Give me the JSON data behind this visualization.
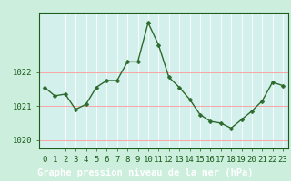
{
  "x": [
    0,
    1,
    2,
    3,
    4,
    5,
    6,
    7,
    8,
    9,
    10,
    11,
    12,
    13,
    14,
    15,
    16,
    17,
    18,
    19,
    20,
    21,
    22,
    23
  ],
  "y": [
    1021.55,
    1021.3,
    1021.35,
    1020.9,
    1021.05,
    1021.55,
    1021.75,
    1021.75,
    1022.3,
    1022.3,
    1023.45,
    1022.8,
    1021.85,
    1021.55,
    1021.2,
    1020.75,
    1020.55,
    1020.5,
    1020.35,
    1020.6,
    1020.85,
    1021.15,
    1021.7,
    1021.6
  ],
  "ylim": [
    1019.75,
    1023.75
  ],
  "yticks": [
    1020,
    1021,
    1022
  ],
  "xticks": [
    0,
    1,
    2,
    3,
    4,
    5,
    6,
    7,
    8,
    9,
    10,
    11,
    12,
    13,
    14,
    15,
    16,
    17,
    18,
    19,
    20,
    21,
    22,
    23
  ],
  "line_color": "#2d6a2d",
  "marker_color": "#2d6a2d",
  "bg_color": "#cceedd",
  "grid_color": "#ff9999",
  "plot_bg_color": "#d4f0ec",
  "xlabel": "Graphe pression niveau de la mer (hPa)",
  "xlabel_color": "#1a5c1a",
  "xlabel_fontsize": 7.5,
  "tick_color": "#1a5c1a",
  "tick_fontsize": 6.5,
  "line_width": 1.0,
  "marker_size": 2.5,
  "footer_bg": "#4a9a6a"
}
